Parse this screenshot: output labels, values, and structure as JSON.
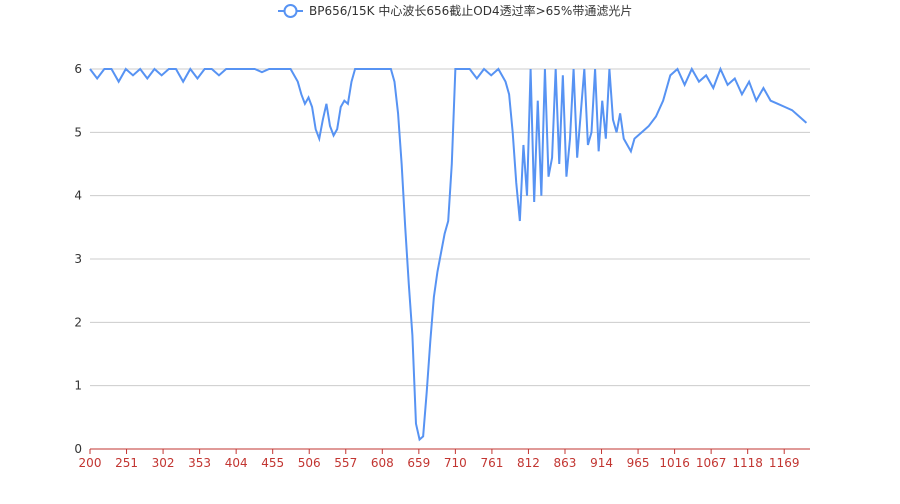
{
  "chart_data": {
    "type": "line",
    "series": [
      {
        "name": "BP656/15K 中心波长656截止OD4透过率>65%带通滤光片",
        "color": "#5793f3",
        "x": [
          200,
          210,
          220,
          230,
          240,
          250,
          260,
          270,
          280,
          290,
          300,
          310,
          320,
          330,
          340,
          350,
          360,
          370,
          380,
          390,
          400,
          410,
          420,
          430,
          440,
          450,
          460,
          470,
          480,
          490,
          495,
          500,
          505,
          510,
          515,
          520,
          525,
          530,
          535,
          540,
          545,
          550,
          555,
          560,
          565,
          570,
          580,
          590,
          600,
          610,
          620,
          625,
          630,
          635,
          640,
          645,
          650,
          655,
          660,
          665,
          670,
          675,
          680,
          685,
          690,
          695,
          700,
          705,
          710,
          720,
          730,
          740,
          750,
          760,
          770,
          780,
          785,
          790,
          795,
          800,
          805,
          810,
          815,
          820,
          825,
          830,
          835,
          840,
          845,
          850,
          855,
          860,
          865,
          870,
          875,
          880,
          885,
          890,
          895,
          900,
          905,
          910,
          915,
          920,
          925,
          930,
          935,
          940,
          945,
          950,
          955,
          960,
          970,
          980,
          990,
          1000,
          1010,
          1020,
          1030,
          1040,
          1050,
          1060,
          1070,
          1080,
          1090,
          1100,
          1110,
          1120,
          1130,
          1140,
          1150,
          1160,
          1170,
          1180,
          1190,
          1200
        ],
        "values": [
          6,
          5.85,
          6,
          6,
          5.8,
          6,
          5.9,
          6,
          5.85,
          6,
          5.9,
          6,
          6,
          5.8,
          6,
          5.85,
          6,
          6,
          5.9,
          6,
          6,
          6,
          6,
          6,
          5.95,
          6,
          6,
          6,
          6,
          5.8,
          5.6,
          5.45,
          5.55,
          5.4,
          5.05,
          4.9,
          5.2,
          5.45,
          5.1,
          4.95,
          5.05,
          5.4,
          5.5,
          5.45,
          5.8,
          6,
          6,
          6,
          6,
          6,
          6,
          5.8,
          5.3,
          4.5,
          3.5,
          2.6,
          1.8,
          0.4,
          0.15,
          0.2,
          0.9,
          1.7,
          2.4,
          2.8,
          3.1,
          3.4,
          3.6,
          4.5,
          6,
          6,
          6,
          5.85,
          6,
          5.9,
          6,
          5.8,
          5.6,
          5.0,
          4.2,
          3.6,
          4.8,
          4.0,
          6,
          3.9,
          5.5,
          4.0,
          6,
          4.3,
          4.6,
          6,
          4.5,
          5.9,
          4.3,
          4.9,
          6,
          4.6,
          5.3,
          6,
          4.8,
          5.0,
          6,
          4.7,
          5.5,
          4.9,
          6,
          5.2,
          5.0,
          5.3,
          4.9,
          4.8,
          4.7,
          4.9,
          5.0,
          5.1,
          5.25,
          5.5,
          5.9,
          6,
          5.75,
          6,
          5.8,
          5.9,
          5.7,
          6,
          5.75,
          5.85,
          5.6,
          5.8,
          5.5,
          5.7,
          5.5,
          5.45,
          5.4,
          5.35,
          5.25,
          5.15
        ]
      }
    ],
    "xlim": [
      200,
      1205
    ],
    "xticks": [
      200,
      251,
      302,
      353,
      404,
      455,
      506,
      557,
      608,
      659,
      710,
      761,
      812,
      863,
      914,
      965,
      1016,
      1067,
      1118,
      1169
    ],
    "ylim": [
      0,
      6
    ],
    "yticks": [
      0,
      1,
      2,
      3,
      4,
      5,
      6
    ],
    "grid": true,
    "legend": "top"
  }
}
